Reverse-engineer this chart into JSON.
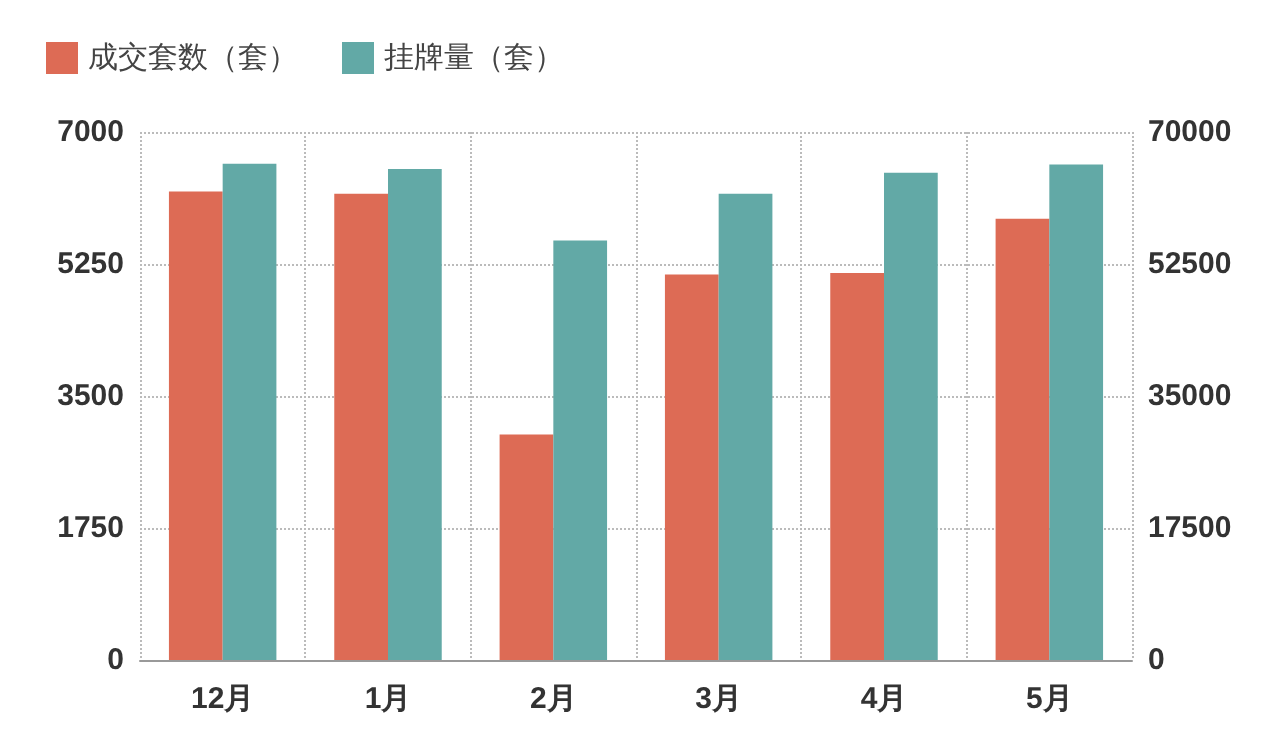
{
  "chart_data": {
    "type": "bar",
    "categories": [
      "12月",
      "1月",
      "2月",
      "3月",
      "4月",
      "5月"
    ],
    "series": [
      {
        "name": "成交套数（套）",
        "color": "#dd6b55",
        "values": [
          6210,
          6180,
          2990,
          5110,
          5130,
          5850
        ]
      },
      {
        "name": "挂牌量（套）",
        "color": "#62a9a6",
        "values": [
          65800,
          65100,
          55600,
          61800,
          64600,
          65700
        ],
        "axis": "y2"
      }
    ],
    "ylim": [
      0,
      7000
    ],
    "yticks": [
      0,
      1750,
      3500,
      5250,
      7000
    ],
    "y2lim": [
      0,
      70000
    ],
    "y2ticks": [
      0,
      17500,
      35000,
      52500,
      70000
    ],
    "grid": true,
    "legend": "top left"
  }
}
